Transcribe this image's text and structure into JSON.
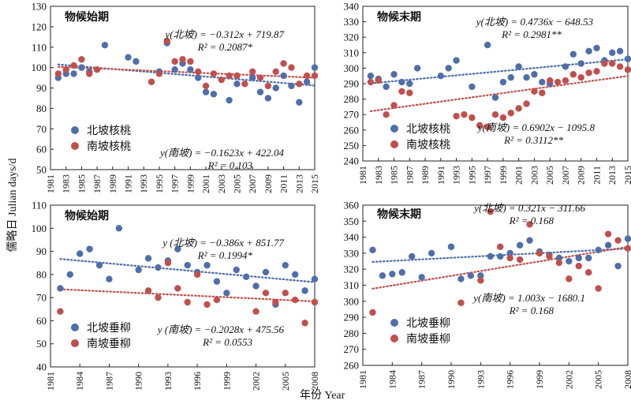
{
  "axis_labels": {
    "y": "儒略日 Julian days/d",
    "x": "年份 Year"
  },
  "chart_data": [
    {
      "type": "scatter",
      "title": "物候始期",
      "x": [
        1982,
        1983,
        1984,
        1985,
        1986,
        1987,
        1988,
        1991,
        1992,
        1994,
        1995,
        1996,
        1997,
        1998,
        1999,
        2000,
        2001,
        2002,
        2003,
        2004,
        2005,
        2006,
        2007,
        2008,
        2009,
        2010,
        2011,
        2012,
        2013,
        2014,
        2015
      ],
      "xticks": [
        "1981",
        "1983",
        "1985",
        "1987",
        "1989",
        "1991",
        "1993",
        "1995",
        "1997",
        "1999",
        "2001",
        "2003",
        "2005",
        "2007",
        "2009",
        "2011",
        "2013",
        "2015"
      ],
      "yticks": [
        "50",
        "60",
        "70",
        "80",
        "90",
        "100",
        "110",
        "120",
        "130"
      ],
      "xlim": [
        1981,
        2015
      ],
      "ylim": [
        50,
        130
      ],
      "series": [
        {
          "name": "北坡核桃",
          "color": "#4f6eaa",
          "points": [
            [
              1982,
              95
            ],
            [
              1983,
              97
            ],
            [
              1984,
              97
            ],
            [
              1985,
              100
            ],
            [
              1986,
              98
            ],
            [
              1988,
              111
            ],
            [
              1991,
              105
            ],
            [
              1992,
              103
            ],
            [
              1995,
              98
            ],
            [
              1996,
              112
            ],
            [
              1997,
              99
            ],
            [
              1998,
              102
            ],
            [
              1999,
              99
            ],
            [
              2000,
              95
            ],
            [
              2001,
              88
            ],
            [
              2002,
              87
            ],
            [
              2004,
              84
            ],
            [
              2005,
              92
            ],
            [
              2007,
              95
            ],
            [
              2008,
              88
            ],
            [
              2009,
              85
            ],
            [
              2010,
              90
            ],
            [
              2011,
              96
            ],
            [
              2012,
              91
            ],
            [
              2013,
              83
            ],
            [
              2014,
              93
            ],
            [
              2015,
              100
            ]
          ]
        },
        {
          "name": "南坡核桃",
          "color": "#c0504d",
          "points": [
            [
              1982,
              97
            ],
            [
              1983,
              99
            ],
            [
              1984,
              101
            ],
            [
              1985,
              104
            ],
            [
              1986,
              97
            ],
            [
              1987,
              99
            ],
            [
              1994,
              93
            ],
            [
              1995,
              97
            ],
            [
              1996,
              113
            ],
            [
              1997,
              103
            ],
            [
              1998,
              104
            ],
            [
              1999,
              103
            ],
            [
              2000,
              98
            ],
            [
              2001,
              91
            ],
            [
              2002,
              97
            ],
            [
              2003,
              94
            ],
            [
              2004,
              96
            ],
            [
              2005,
              96
            ],
            [
              2006,
              92
            ],
            [
              2007,
              98
            ],
            [
              2008,
              95
            ],
            [
              2009,
              91
            ],
            [
              2010,
              98
            ],
            [
              2011,
              102
            ],
            [
              2012,
              100
            ],
            [
              2013,
              92
            ],
            [
              2014,
              96
            ],
            [
              2015,
              96
            ]
          ]
        }
      ],
      "trendlines": [
        {
          "series": "北坡核桃",
          "slope": -0.312,
          "intercept": 719.87
        },
        {
          "series": "南坡核桃",
          "slope": -0.1623,
          "intercept": 422.04
        }
      ],
      "annotations": [
        {
          "eq": "y(北坡) = −0.312x + 719.87",
          "r2": "R² = 0.2087*"
        },
        {
          "eq": "y(南坡) = −0.1623x + 422.04",
          "r2": "R² = 0.103"
        }
      ]
    },
    {
      "type": "scatter",
      "title": "物候末期",
      "xticks": [
        "1981",
        "1983",
        "1985",
        "1987",
        "1989",
        "1991",
        "1993",
        "1995",
        "1997",
        "1999",
        "2001",
        "2003",
        "2005",
        "2007",
        "2009",
        "2011",
        "2013",
        "2015"
      ],
      "yticks": [
        "240",
        "250",
        "260",
        "270",
        "280",
        "290",
        "300",
        "310",
        "320",
        "330",
        "340"
      ],
      "xlim": [
        1981,
        2015
      ],
      "ylim": [
        240,
        340
      ],
      "series": [
        {
          "name": "北坡核桃",
          "color": "#4f6eaa",
          "points": [
            [
              1982,
              295
            ],
            [
              1983,
              293
            ],
            [
              1984,
              288
            ],
            [
              1985,
              296
            ],
            [
              1986,
              291
            ],
            [
              1987,
              290
            ],
            [
              1988,
              300
            ],
            [
              1991,
              295
            ],
            [
              1992,
              300
            ],
            [
              1993,
              305
            ],
            [
              1995,
              288
            ],
            [
              1997,
              315
            ],
            [
              1998,
              281
            ],
            [
              1999,
              291
            ],
            [
              2000,
              294
            ],
            [
              2001,
              301
            ],
            [
              2002,
              294
            ],
            [
              2003,
              296
            ],
            [
              2004,
              291
            ],
            [
              2005,
              290
            ],
            [
              2007,
              301
            ],
            [
              2008,
              309
            ],
            [
              2009,
              303
            ],
            [
              2010,
              311
            ],
            [
              2011,
              313
            ],
            [
              2012,
              305
            ],
            [
              2013,
              310
            ],
            [
              2014,
              311
            ],
            [
              2015,
              306
            ]
          ]
        },
        {
          "name": "南坡核桃",
          "color": "#c0504d",
          "points": [
            [
              1982,
              291
            ],
            [
              1983,
              292
            ],
            [
              1984,
              270
            ],
            [
              1985,
              276
            ],
            [
              1986,
              285
            ],
            [
              1987,
              284
            ],
            [
              1993,
              269
            ],
            [
              1994,
              270
            ],
            [
              1995,
              268
            ],
            [
              1996,
              263
            ],
            [
              1997,
              262
            ],
            [
              1998,
              270
            ],
            [
              1999,
              268
            ],
            [
              2000,
              271
            ],
            [
              2001,
              274
            ],
            [
              2002,
              277
            ],
            [
              2003,
              285
            ],
            [
              2004,
              284
            ],
            [
              2005,
              292
            ],
            [
              2006,
              291
            ],
            [
              2007,
              292
            ],
            [
              2008,
              296
            ],
            [
              2009,
              294
            ],
            [
              2010,
              297
            ],
            [
              2011,
              298
            ],
            [
              2012,
              303
            ],
            [
              2013,
              303
            ],
            [
              2014,
              301
            ],
            [
              2015,
              299
            ]
          ]
        }
      ],
      "trendlines": [
        {
          "series": "北坡核桃",
          "slope": 0.4736,
          "intercept": -648.53
        },
        {
          "series": "南坡核桃",
          "slope": 0.6902,
          "intercept": -1095.8
        }
      ],
      "annotations": [
        {
          "eq": "y(北坡) = 0.4736x − 648.53",
          "r2": "R² = 0.2981**"
        },
        {
          "eq": "y(南坡) = 0.6902x − 1095.8",
          "r2": "R² = 0.3112**"
        }
      ]
    },
    {
      "type": "scatter",
      "title": "物候始期",
      "xticks": [
        "1981",
        "1984",
        "1987",
        "1990",
        "1993",
        "1996",
        "1999",
        "2002",
        "2005",
        "2008"
      ],
      "yticks": [
        "40",
        "50",
        "60",
        "70",
        "80",
        "90",
        "100",
        "110"
      ],
      "xlim": [
        1981,
        2008
      ],
      "ylim": [
        40,
        110
      ],
      "series": [
        {
          "name": "北坡垂柳",
          "color": "#4f6eaa",
          "points": [
            [
              1982,
              74
            ],
            [
              1983,
              80
            ],
            [
              1984,
              89
            ],
            [
              1985,
              91
            ],
            [
              1986,
              84
            ],
            [
              1987,
              78
            ],
            [
              1988,
              100
            ],
            [
              1990,
              82
            ],
            [
              1991,
              87
            ],
            [
              1992,
              83
            ],
            [
              1993,
              86
            ],
            [
              1994,
              91
            ],
            [
              1995,
              84
            ],
            [
              1996,
              81
            ],
            [
              1997,
              84
            ],
            [
              1998,
              77
            ],
            [
              1999,
              72
            ],
            [
              2000,
              82
            ],
            [
              2001,
              79
            ],
            [
              2002,
              75
            ],
            [
              2003,
              81
            ],
            [
              2004,
              67
            ],
            [
              2005,
              84
            ],
            [
              2006,
              80
            ],
            [
              2007,
              73
            ],
            [
              2008,
              78
            ]
          ]
        },
        {
          "name": "南坡垂柳",
          "color": "#c0504d",
          "points": [
            [
              1982,
              64
            ],
            [
              1991,
              73
            ],
            [
              1992,
              70
            ],
            [
              1993,
              85
            ],
            [
              1994,
              74
            ],
            [
              1995,
              68
            ],
            [
              1996,
              80
            ],
            [
              1997,
              67
            ],
            [
              1998,
              69
            ],
            [
              2002,
              64
            ],
            [
              2003,
              72
            ],
            [
              2004,
              68
            ],
            [
              2005,
              72
            ],
            [
              2006,
              69
            ],
            [
              2007,
              59
            ],
            [
              2008,
              68
            ]
          ]
        }
      ],
      "trendlines": [
        {
          "series": "北坡垂柳",
          "slope": -0.386,
          "intercept": 851.77
        },
        {
          "series": "南坡垂柳",
          "slope": -0.2028,
          "intercept": 475.56
        }
      ],
      "annotations": [
        {
          "eq": "y (北坡) = −0.386x + 851.77",
          "r2": "R² = 0.1994*"
        },
        {
          "eq": "y (南坡) = −0.2028x + 475.56",
          "r2": "R² = 0.0553"
        }
      ]
    },
    {
      "type": "scatter",
      "title": "物候末期",
      "xticks": [
        "1981",
        "1984",
        "1987",
        "1990",
        "1993",
        "1996",
        "1999",
        "2002",
        "2005",
        "2008"
      ],
      "yticks": [
        "260",
        "270",
        "280",
        "290",
        "300",
        "310",
        "320",
        "330",
        "340",
        "350",
        "360"
      ],
      "xlim": [
        1981,
        2008
      ],
      "ylim": [
        260,
        360
      ],
      "series": [
        {
          "name": "北坡垂柳",
          "color": "#4f6eaa",
          "points": [
            [
              1982,
              332
            ],
            [
              1983,
              316
            ],
            [
              1984,
              317
            ],
            [
              1985,
              318
            ],
            [
              1986,
              328
            ],
            [
              1987,
              315
            ],
            [
              1988,
              330
            ],
            [
              1990,
              334
            ],
            [
              1991,
              314
            ],
            [
              1992,
              316
            ],
            [
              1993,
              316
            ],
            [
              1994,
              328
            ],
            [
              1995,
              328
            ],
            [
              1996,
              330
            ],
            [
              1997,
              335
            ],
            [
              1998,
              338
            ],
            [
              1999,
              331
            ],
            [
              2000,
              329
            ],
            [
              2001,
              327
            ],
            [
              2002,
              325
            ],
            [
              2003,
              327
            ],
            [
              2004,
              327
            ],
            [
              2005,
              332
            ],
            [
              2006,
              335
            ],
            [
              2007,
              322
            ],
            [
              2008,
              339
            ]
          ]
        },
        {
          "name": "南坡垂柳",
          "color": "#c0504d",
          "points": [
            [
              1982,
              293
            ],
            [
              1991,
              299
            ],
            [
              1993,
              313
            ],
            [
              1994,
              356
            ],
            [
              1995,
              334
            ],
            [
              1996,
              327
            ],
            [
              1997,
              326
            ],
            [
              1998,
              348
            ],
            [
              1999,
              330
            ],
            [
              2000,
              328
            ],
            [
              2001,
              324
            ],
            [
              2002,
              314
            ],
            [
              2003,
              322
            ],
            [
              2004,
              318
            ],
            [
              2005,
              308
            ],
            [
              2006,
              342
            ],
            [
              2007,
              338
            ],
            [
              2008,
              333
            ]
          ]
        }
      ],
      "trendlines": [
        {
          "series": "北坡垂柳",
          "slope": 0.321,
          "intercept": -311.66
        },
        {
          "series": "南坡垂柳",
          "slope": 1.003,
          "intercept": -1680.1
        }
      ],
      "annotations": [
        {
          "eq": "y(北坡) = 0.321x − 311.66",
          "r2": "R² = 0.168"
        },
        {
          "eq": "y(南坡) = 1.003x − 1680.1",
          "r2": "R² = 0.168"
        }
      ]
    }
  ]
}
